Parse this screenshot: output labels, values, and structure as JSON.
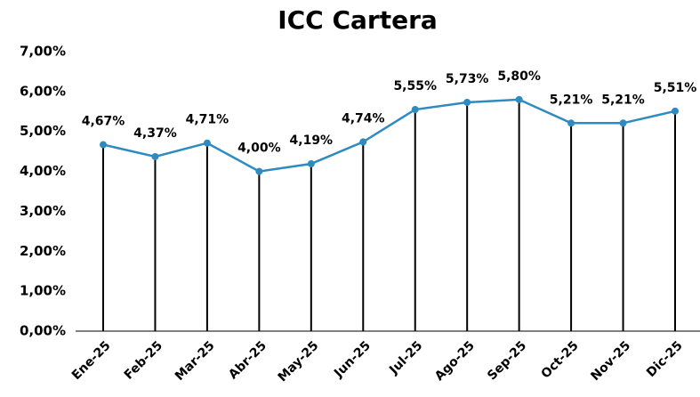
{
  "chart_data": {
    "type": "line",
    "title": "ICC Cartera",
    "categories": [
      "Ene-25",
      "Feb-25",
      "Mar-25",
      "Abr-25",
      "May-25",
      "Jun-25",
      "Jul-25",
      "Ago-25",
      "Sep-25",
      "Oct-25",
      "Nov-25",
      "Dic-25"
    ],
    "series": [
      {
        "name": "ICC Cartera",
        "color": "#2e8bc0",
        "values": [
          4.67,
          4.37,
          4.71,
          4.0,
          4.19,
          4.74,
          5.55,
          5.73,
          5.8,
          5.21,
          5.21,
          5.51
        ],
        "value_labels": [
          "4,67%",
          "4,37%",
          "4,71%",
          "4,00%",
          "4,19%",
          "4,74%",
          "5,55%",
          "5,73%",
          "5,80%",
          "5,21%",
          "5,21%",
          "5,51%"
        ]
      }
    ],
    "ylim": [
      0,
      7
    ],
    "yticks": [
      {
        "value": 0,
        "label": "0,00%"
      },
      {
        "value": 1,
        "label": "1,00%"
      },
      {
        "value": 2,
        "label": "2,00%"
      },
      {
        "value": 3,
        "label": "3,00%"
      },
      {
        "value": 4,
        "label": "4,00%"
      },
      {
        "value": 5,
        "label": "5,00%"
      },
      {
        "value": 6,
        "label": "6,00%"
      },
      {
        "value": 7,
        "label": "7,00%"
      }
    ],
    "grid": false,
    "drop_line_color": "#000000"
  }
}
